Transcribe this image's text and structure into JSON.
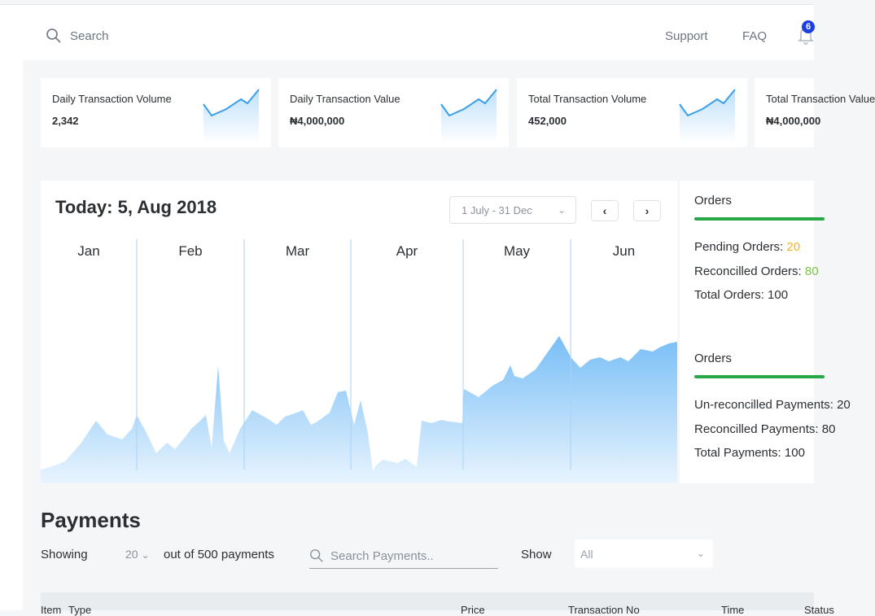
{
  "header": {
    "search_placeholder": "Search",
    "support": "Support",
    "faq": "FAQ",
    "notification_count": "6"
  },
  "stats": [
    {
      "label": "Daily Transaction Volume",
      "value": "2,342"
    },
    {
      "label": "Daily Transaction Value",
      "value": "₦4,000,000"
    },
    {
      "label": "Total Transaction Volume",
      "value": "452,000"
    },
    {
      "label": "Total Transaction Value",
      "value": "₦4,000,000"
    }
  ],
  "chart_card": {
    "title": "Today: 5, Aug 2018",
    "range": "1 July - 31 Dec",
    "prev": "‹",
    "next": "›"
  },
  "chart_data": {
    "type": "area",
    "categories": [
      "Jan",
      "Feb",
      "Mar",
      "Apr",
      "May",
      "Jun"
    ],
    "color": "#7fc2f7"
  },
  "orders_panel": {
    "orders_title": "Orders",
    "pending_label": "Pending Orders: ",
    "pending_value": "20",
    "reconciled_label": "Reconcilled Orders: ",
    "reconciled_value": "80",
    "total_orders": "Total Orders: 100",
    "payments_title": "Orders",
    "unreconciled": "Un-reconcilled Payments: 20",
    "reconciled_payments": "Reconcilled Payments: 80",
    "total_payments": "Total Payments: 100"
  },
  "payments": {
    "title": "Payments",
    "showing": "Showing",
    "per_page": "20",
    "out_of": "out of 500 payments",
    "search_placeholder": "Search Payments..",
    "show_label": "Show",
    "show_value": "All",
    "columns": [
      "Item",
      "Type",
      "Price",
      "Transaction No",
      "Time",
      "Status"
    ]
  }
}
